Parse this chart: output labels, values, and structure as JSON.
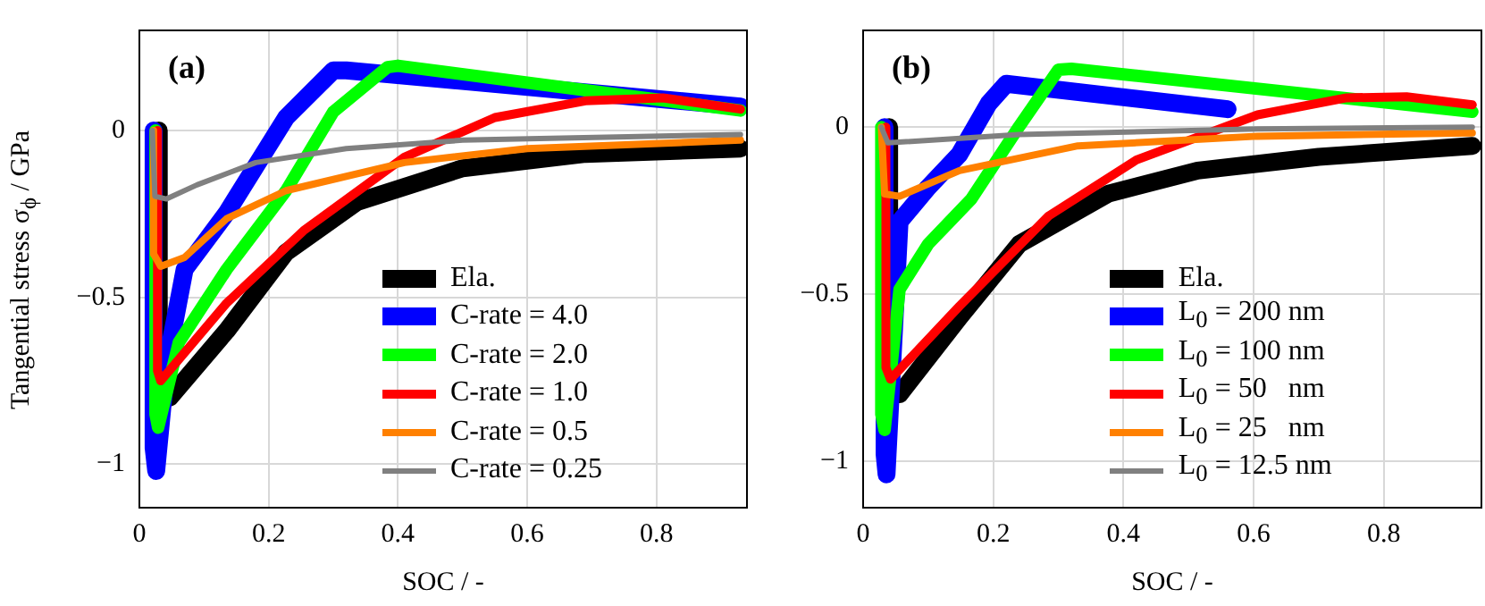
{
  "chart_data": [
    {
      "type": "line",
      "annotations": [
        "(a)"
      ],
      "xlabel": "SOC / -",
      "ylabel": "Tangential stress σ$_{ϕ}$ / GPa",
      "xlim": [
        0,
        0.94
      ],
      "ylim": [
        -1.13,
        0.3
      ],
      "xticks": [
        0,
        0.2,
        0.4,
        0.6,
        0.8
      ],
      "yticks": [
        -1,
        -0.5,
        0
      ],
      "grid": true,
      "legend": "bottom right",
      "marker": "none",
      "line_style": "solid",
      "series": [
        {
          "name": "Ela.",
          "color": "#000000",
          "x": [
            0.03,
            0.03,
            0.047,
            0.135,
            0.227,
            0.337,
            0.5,
            0.69,
            0.93
          ],
          "values": [
            0,
            -0.75,
            -0.8,
            -0.6,
            -0.365,
            -0.214,
            -0.113,
            -0.07,
            -0.054
          ]
        },
        {
          "name": "C-rate = 4.0",
          "color": "#0000ff",
          "x": [
            0.022,
            0.022,
            0.026,
            0.042,
            0.07,
            0.135,
            0.227,
            0.3,
            0.32,
            0.93
          ],
          "values": [
            0,
            -0.95,
            -1.02,
            -0.7,
            -0.416,
            -0.247,
            0.039,
            0.18,
            0.18,
            0.072
          ]
        },
        {
          "name": "C-rate = 2.0",
          "color": "#00ff00",
          "x": [
            0.025,
            0.025,
            0.029,
            0.061,
            0.135,
            0.227,
            0.3,
            0.384,
            0.4,
            0.93
          ],
          "values": [
            0,
            -0.85,
            -0.89,
            -0.635,
            -0.416,
            -0.18,
            0.056,
            0.19,
            0.194,
            0.06
          ]
        },
        {
          "name": "C-rate = 1.0",
          "color": "#ff0000",
          "x": [
            0.028,
            0.028,
            0.033,
            0.135,
            0.254,
            0.41,
            0.55,
            0.69,
            0.81,
            0.93
          ],
          "values": [
            0,
            -0.72,
            -0.75,
            -0.517,
            -0.3,
            -0.08,
            0.039,
            0.089,
            0.098,
            0.064
          ]
        },
        {
          "name": "C-rate = 0.5",
          "color": "#ff8000",
          "x": [
            0.022,
            0.022,
            0.033,
            0.07,
            0.135,
            0.227,
            0.41,
            0.6,
            0.93
          ],
          "values": [
            0,
            -0.37,
            -0.407,
            -0.38,
            -0.264,
            -0.18,
            -0.096,
            -0.054,
            -0.029
          ]
        },
        {
          "name": "C-rate = 0.25",
          "color": "#808080",
          "x": [
            0.02,
            0.024,
            0.042,
            0.089,
            0.18,
            0.32,
            0.5,
            0.93
          ],
          "values": [
            0,
            -0.197,
            -0.205,
            -0.163,
            -0.096,
            -0.054,
            -0.029,
            -0.012
          ]
        }
      ]
    },
    {
      "type": "line",
      "annotations": [
        "(b)"
      ],
      "xlabel": "SOC / -",
      "xlim": [
        0,
        0.95
      ],
      "ylim": [
        -1.14,
        0.29
      ],
      "xticks": [
        0,
        0.2,
        0.4,
        0.6,
        0.8
      ],
      "yticks": [
        -1,
        -0.5,
        0
      ],
      "grid": true,
      "legend": "bottom right",
      "marker": "none",
      "line_style": "solid",
      "series": [
        {
          "name": "Ela.",
          "color": "#000000",
          "x": [
            0.04,
            0.04,
            0.056,
            0.148,
            0.24,
            0.377,
            0.514,
            0.7,
            0.936
          ],
          "values": [
            0,
            -0.76,
            -0.8,
            -0.57,
            -0.35,
            -0.199,
            -0.13,
            -0.089,
            -0.056
          ]
        },
        {
          "name": "L$_{0}$ = 200 nm",
          "color": "#0000ff",
          "x": [
            0.033,
            0.033,
            0.036,
            0.056,
            0.1,
            0.148,
            0.193,
            0.22,
            0.56
          ],
          "values": [
            0,
            -0.98,
            -1.04,
            -0.283,
            -0.18,
            -0.081,
            0.071,
            0.13,
            0.054
          ]
        },
        {
          "name": "L$_{0}$ = 100 nm",
          "color": "#00ff00",
          "x": [
            0.028,
            0.028,
            0.033,
            0.056,
            0.1,
            0.166,
            0.24,
            0.3,
            0.32,
            0.936
          ],
          "values": [
            0,
            -0.86,
            -0.907,
            -0.486,
            -0.35,
            -0.216,
            0.003,
            0.172,
            0.175,
            0.046
          ]
        },
        {
          "name": "L$_{0}$ = 50   nm",
          "color": "#ff0000",
          "x": [
            0.035,
            0.035,
            0.042,
            0.148,
            0.285,
            0.42,
            0.606,
            0.743,
            0.835,
            0.936
          ],
          "values": [
            0,
            -0.72,
            -0.755,
            -0.536,
            -0.266,
            -0.098,
            0.037,
            0.088,
            0.091,
            0.067
          ]
        },
        {
          "name": "L$_{0}$ = 25   nm",
          "color": "#ff8000",
          "x": [
            0.028,
            0.033,
            0.056,
            0.148,
            0.33,
            0.606,
            0.936
          ],
          "values": [
            0,
            -0.2,
            -0.207,
            -0.13,
            -0.056,
            -0.027,
            -0.017
          ]
        },
        {
          "name": "L$_{0}$ = 12.5 nm",
          "color": "#808080",
          "x": [
            0.028,
            0.038,
            0.24,
            0.606,
            0.936
          ],
          "values": [
            0,
            -0.047,
            -0.022,
            -0.005,
            0
          ]
        }
      ]
    }
  ]
}
